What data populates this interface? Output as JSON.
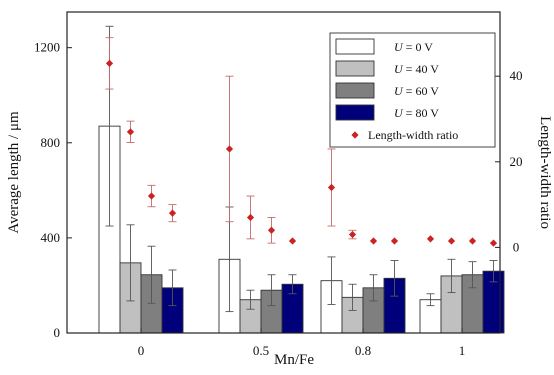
{
  "chart_data": {
    "type": "bar",
    "categories": [
      "0",
      "0.5",
      "0.8",
      "1"
    ],
    "xlabel": "Mn/Fe",
    "ylabel_left": "Average length / μm",
    "ylabel_right": "Length-width ratio",
    "ylim_left": [
      0,
      1350
    ],
    "yticks_left": [
      0,
      400,
      800,
      1200
    ],
    "ytick_labels_left": [
      "0",
      "400",
      "800",
      "1200"
    ],
    "ylim_right": [
      -20,
      55
    ],
    "yticks_right": [
      0,
      20,
      40
    ],
    "ytick_labels_right": [
      "0",
      "20",
      "40"
    ],
    "grid": false,
    "legend_position": "top-right",
    "series": [
      {
        "name": "0 V",
        "legend_prefix": "U",
        "legend_eq": " = ",
        "legend_value": " 0 V",
        "color": "#ffffff",
        "values": [
          870,
          310,
          220,
          140
        ],
        "errors": [
          420,
          220,
          100,
          25
        ]
      },
      {
        "name": "40 V",
        "legend_prefix": "U",
        "legend_eq": " = ",
        "legend_value": "40 V",
        "color": "#c0c0c0",
        "values": [
          295,
          140,
          150,
          240
        ],
        "errors": [
          160,
          40,
          55,
          70
        ]
      },
      {
        "name": "60 V",
        "legend_prefix": "U",
        "legend_eq": " = ",
        "legend_value": "60 V",
        "color": "#7f7f7f",
        "values": [
          245,
          180,
          190,
          245
        ],
        "errors": [
          120,
          65,
          55,
          55
        ]
      },
      {
        "name": "80 V",
        "legend_prefix": "U",
        "legend_eq": " = ",
        "legend_value": "80 V",
        "color": "#00007a",
        "values": [
          190,
          205,
          230,
          260
        ],
        "errors": [
          75,
          40,
          75,
          45
        ]
      }
    ],
    "ratio_series": {
      "name": "Length-width ratio",
      "color": "#cc2222",
      "points": [
        {
          "group": 0,
          "bar": 0,
          "y": 43,
          "err": 6
        },
        {
          "group": 0,
          "bar": 1,
          "y": 27,
          "err": 2.5
        },
        {
          "group": 0,
          "bar": 2,
          "y": 12,
          "err": 2.5
        },
        {
          "group": 0,
          "bar": 3,
          "y": 8,
          "err": 2
        },
        {
          "group": 1,
          "bar": 0,
          "y": 23,
          "err": 17
        },
        {
          "group": 1,
          "bar": 1,
          "y": 7,
          "err": 5
        },
        {
          "group": 1,
          "bar": 2,
          "y": 4,
          "err": 3
        },
        {
          "group": 1,
          "bar": 3,
          "y": 1.5,
          "err": 0
        },
        {
          "group": 2,
          "bar": 0,
          "y": 14,
          "err": 9
        },
        {
          "group": 2,
          "bar": 1,
          "y": 3,
          "err": 1
        },
        {
          "group": 2,
          "bar": 2,
          "y": 1.5,
          "err": 0
        },
        {
          "group": 2,
          "bar": 3,
          "y": 1.5,
          "err": 0
        },
        {
          "group": 3,
          "bar": 0,
          "y": 2,
          "err": 0
        },
        {
          "group": 3,
          "bar": 1,
          "y": 1.5,
          "err": 0
        },
        {
          "group": 3,
          "bar": 2,
          "y": 1.5,
          "err": 0
        },
        {
          "group": 3,
          "bar": 3,
          "y": 1,
          "err": 0
        }
      ]
    }
  }
}
